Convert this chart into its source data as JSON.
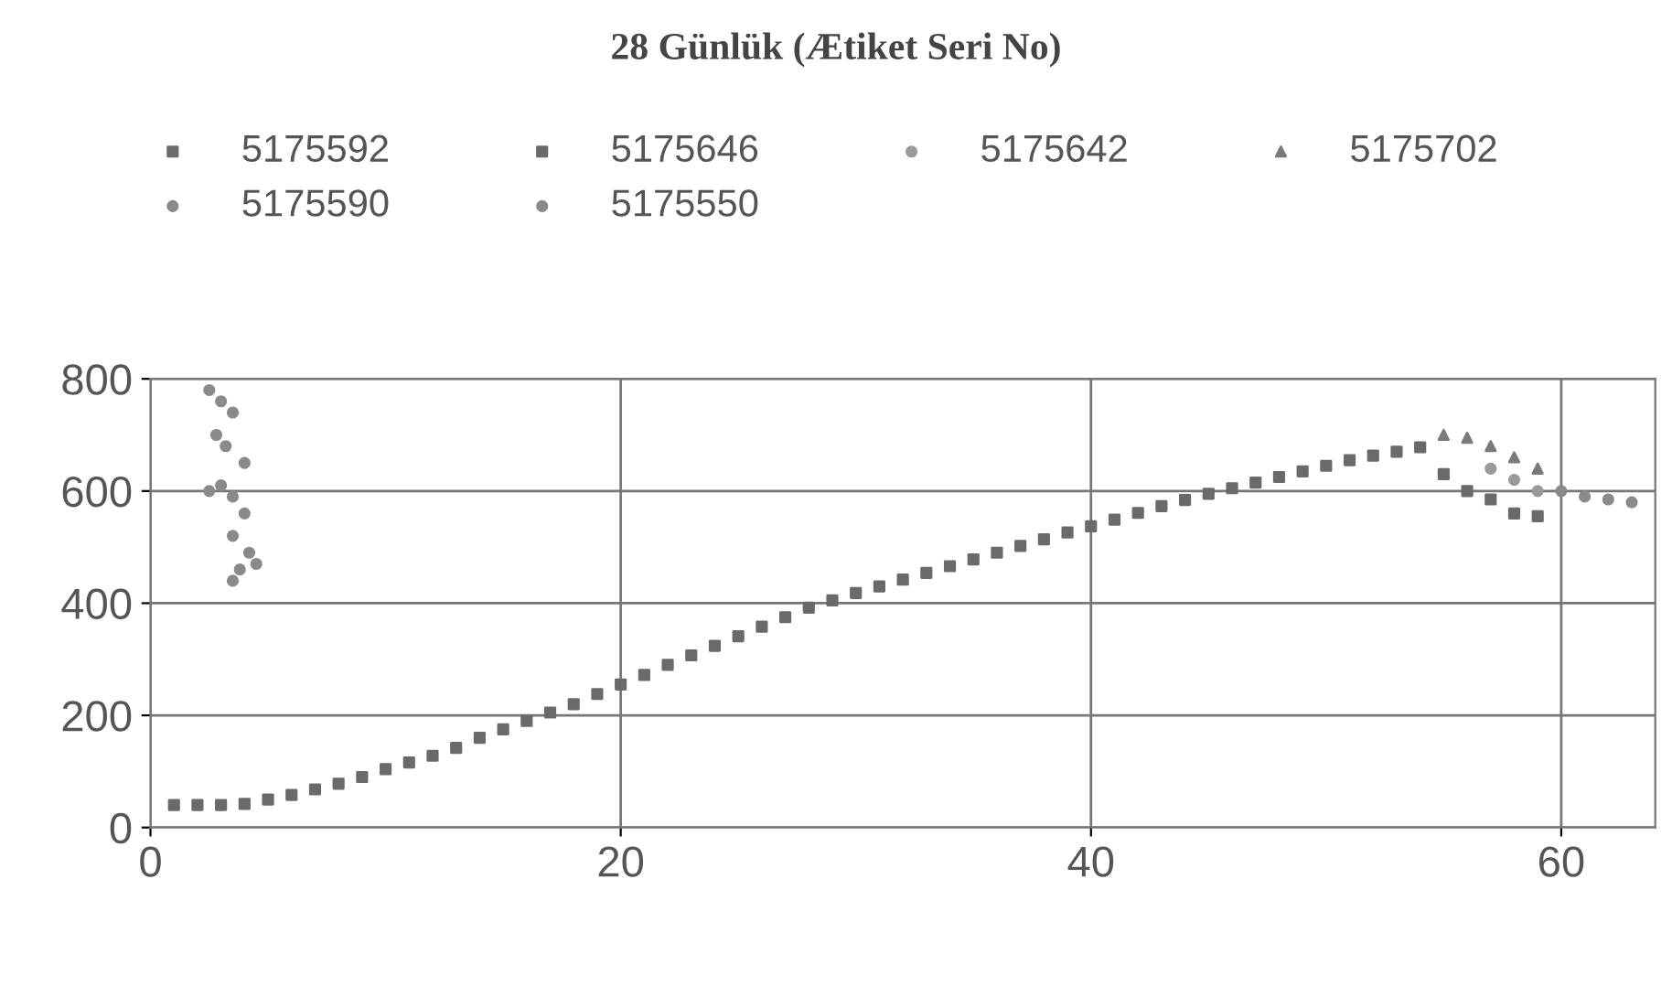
{
  "chart_data": {
    "type": "scatter",
    "title": "28 Günlük (Ætiket Seri No)",
    "xlim": [
      0,
      64
    ],
    "xticks": [
      0,
      20,
      40,
      60
    ],
    "ylim": [
      0,
      800
    ],
    "yticks": [
      0,
      200,
      400,
      600,
      800
    ],
    "grid": true,
    "legend": "top",
    "series": [
      {
        "name": "5175592",
        "color": "#6a6a6a",
        "marker": "square",
        "x": [
          1,
          2,
          3,
          4,
          5,
          6,
          7,
          8,
          9,
          10,
          11,
          12,
          13,
          14,
          15,
          16,
          17,
          18,
          19,
          20,
          21,
          22,
          23,
          24,
          25,
          26,
          27,
          28,
          29,
          30,
          31,
          32,
          33,
          34,
          35,
          36,
          37,
          38,
          39,
          40,
          41,
          42,
          43,
          44,
          45,
          46,
          47,
          48,
          49,
          50,
          51,
          52,
          53,
          54
        ],
        "values": [
          40,
          40,
          40,
          42,
          50,
          58,
          68,
          78,
          90,
          104,
          116,
          128,
          142,
          160,
          175,
          190,
          205,
          220,
          238,
          255,
          272,
          290,
          307,
          324,
          341,
          358,
          375,
          392,
          405,
          418,
          430,
          442,
          454,
          466,
          478,
          490,
          502,
          514,
          526,
          537,
          549,
          561,
          573,
          584,
          595,
          605,
          615,
          625,
          635,
          645,
          655,
          663,
          670,
          678
        ]
      },
      {
        "name": "5175590",
        "color": "#8a8a8a",
        "marker": "circle",
        "x": [
          2.5,
          3,
          3.5,
          2.8,
          3.2,
          4,
          3,
          2.5,
          3.5,
          4,
          3.5,
          4.2,
          4.5,
          3.8,
          3.5
        ],
        "values": [
          780,
          760,
          740,
          700,
          680,
          650,
          610,
          600,
          590,
          560,
          520,
          490,
          470,
          460,
          440
        ]
      },
      {
        "name": "5175646",
        "color": "#6a6a6a",
        "marker": "square",
        "x": [
          55,
          56,
          57,
          58,
          59
        ],
        "values": [
          630,
          600,
          585,
          560,
          555
        ]
      },
      {
        "name": "5175550",
        "color": "#8a8a8a",
        "marker": "circle",
        "x": [
          60,
          61,
          62,
          63
        ],
        "values": [
          600,
          590,
          585,
          580
        ]
      },
      {
        "name": "5175642",
        "color": "#9a9a9a",
        "marker": "circle",
        "x": [
          57,
          58,
          59
        ],
        "values": [
          640,
          620,
          600
        ]
      },
      {
        "name": "5175702",
        "color": "#7a7a7a",
        "marker": "triangle",
        "x": [
          55,
          56,
          57,
          58,
          59
        ],
        "values": [
          700,
          695,
          680,
          660,
          640
        ]
      }
    ]
  }
}
